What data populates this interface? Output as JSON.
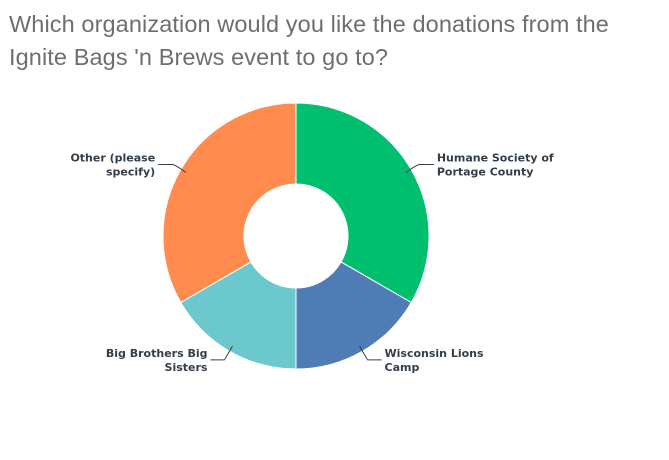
{
  "question": {
    "title": "Which organization would you like the donations from the Ignite Bags 'n Brews event to go to?"
  },
  "chart_data": {
    "type": "pie",
    "donut": true,
    "title": "Which organization would you like the donations from the Ignite Bags 'n Brews event to go to?",
    "slices": [
      {
        "label": "Humane Society of Portage County",
        "lines": [
          "Humane Society of",
          "Portage County"
        ],
        "value": 33.33,
        "color": "#00bf6f"
      },
      {
        "label": "Wisconsin Lions Camp",
        "lines": [
          "Wisconsin Lions",
          "Camp"
        ],
        "value": 16.67,
        "color": "#507cb6"
      },
      {
        "label": "Big Brothers Big Sisters",
        "lines": [
          "Big Brothers Big",
          "Sisters"
        ],
        "value": 16.67,
        "color": "#6bc8cd"
      },
      {
        "label": "Other (please specify)",
        "lines": [
          "Other (please",
          "specify)"
        ],
        "value": 33.33,
        "color": "#ff8b4f"
      }
    ]
  }
}
